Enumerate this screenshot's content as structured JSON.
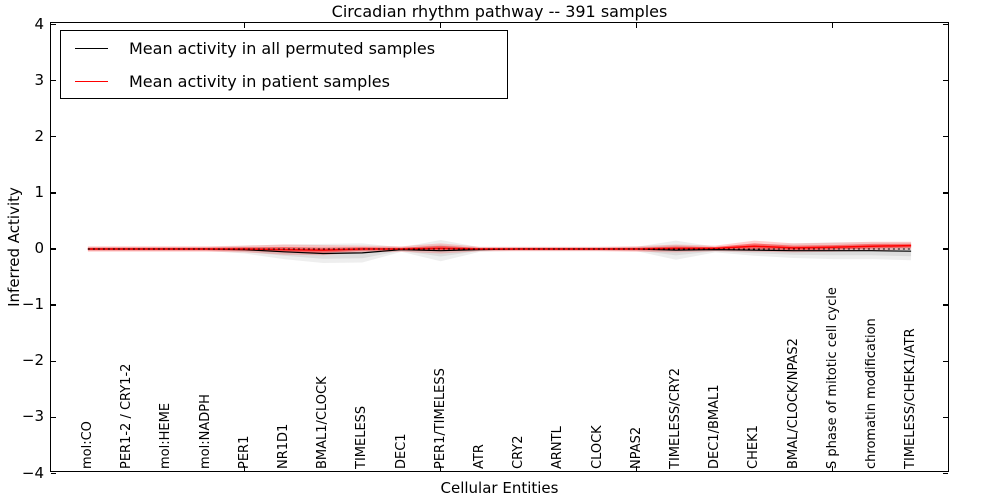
{
  "title": "Circadian rhythm pathway -- 391 samples",
  "axes": {
    "xlabel": "Cellular Entities",
    "ylabel": "Inferred Activity",
    "ytick_labels": [
      "4",
      "3",
      "2",
      "1",
      "0",
      "−1",
      "−2",
      "−3",
      "−4"
    ],
    "ytick_values": [
      4,
      3,
      2,
      1,
      0,
      -1,
      -2,
      -3,
      -4
    ]
  },
  "legend": {
    "items": [
      {
        "label": "Mean activity in all permuted samples",
        "color": "#000000"
      },
      {
        "label": "Mean activity in patient samples",
        "color": "#ff0000"
      }
    ]
  },
  "chart_data": {
    "type": "line",
    "title": "Circadian rhythm pathway -- 391 samples",
    "xlabel": "Cellular Entities",
    "ylabel": "Inferred Activity",
    "ylim": [
      -4,
      4
    ],
    "grid": false,
    "legend_position": "upper left",
    "zero_line": {
      "y": 0,
      "style": "dashed",
      "color": "#000000"
    },
    "x_major_tick_indices": [
      4,
      9,
      14,
      19
    ],
    "categories": [
      "mol:CO",
      "PER1-2 / CRY1-2",
      "mol:HEME",
      "mol:NADPH",
      "PER1",
      "NR1D1",
      "BMAL1/CLOCK",
      "TIMELESS",
      "DEC1",
      "PER1/TIMELESS",
      "ATR",
      "CRY2",
      "ARNTL",
      "CLOCK",
      "NPAS2",
      "TIMELESS/CRY2",
      "DEC1/BMAL1",
      "CHEK1",
      "BMAL/CLOCK/NPAS2",
      "S phase of mitotic cell cycle",
      "chromatin modification",
      "TIMELESS/CHEK1/ATR"
    ],
    "series": [
      {
        "name": "Mean activity in all permuted samples",
        "color": "#000000",
        "style": "solid",
        "values": [
          0,
          0,
          0,
          0,
          -0.01,
          -0.05,
          -0.08,
          -0.07,
          -0.01,
          -0.03,
          -0.01,
          0,
          0,
          0,
          0,
          -0.02,
          -0.01,
          -0.02,
          -0.03,
          -0.03,
          -0.03,
          -0.04
        ]
      },
      {
        "name": "Mean activity in patient samples",
        "color": "#ff0000",
        "style": "solid",
        "values": [
          0,
          0,
          0,
          0,
          0,
          -0.01,
          -0.02,
          0,
          0,
          0.01,
          0,
          0,
          0,
          0,
          0,
          0.01,
          0.01,
          0.05,
          0.02,
          0.03,
          0.05,
          0.06
        ]
      }
    ],
    "bands": [
      {
        "name": "permuted samples spread",
        "color": "#666666",
        "center_series": 0,
        "halfwidths": [
          0.03,
          0.03,
          0.03,
          0.03,
          0.07,
          0.13,
          0.17,
          0.17,
          0.04,
          0.19,
          0.04,
          0.03,
          0.03,
          0.03,
          0.04,
          0.17,
          0.05,
          0.1,
          0.13,
          0.15,
          0.15,
          0.16
        ]
      },
      {
        "name": "patient samples spread",
        "color": "#ff0000",
        "center_series": 1,
        "halfwidths": [
          0.05,
          0.05,
          0.05,
          0.05,
          0.06,
          0.09,
          0.09,
          0.06,
          0.05,
          0.09,
          0.04,
          0.04,
          0.04,
          0.04,
          0.05,
          0.07,
          0.05,
          0.1,
          0.08,
          0.08,
          0.08,
          0.07
        ]
      }
    ]
  }
}
